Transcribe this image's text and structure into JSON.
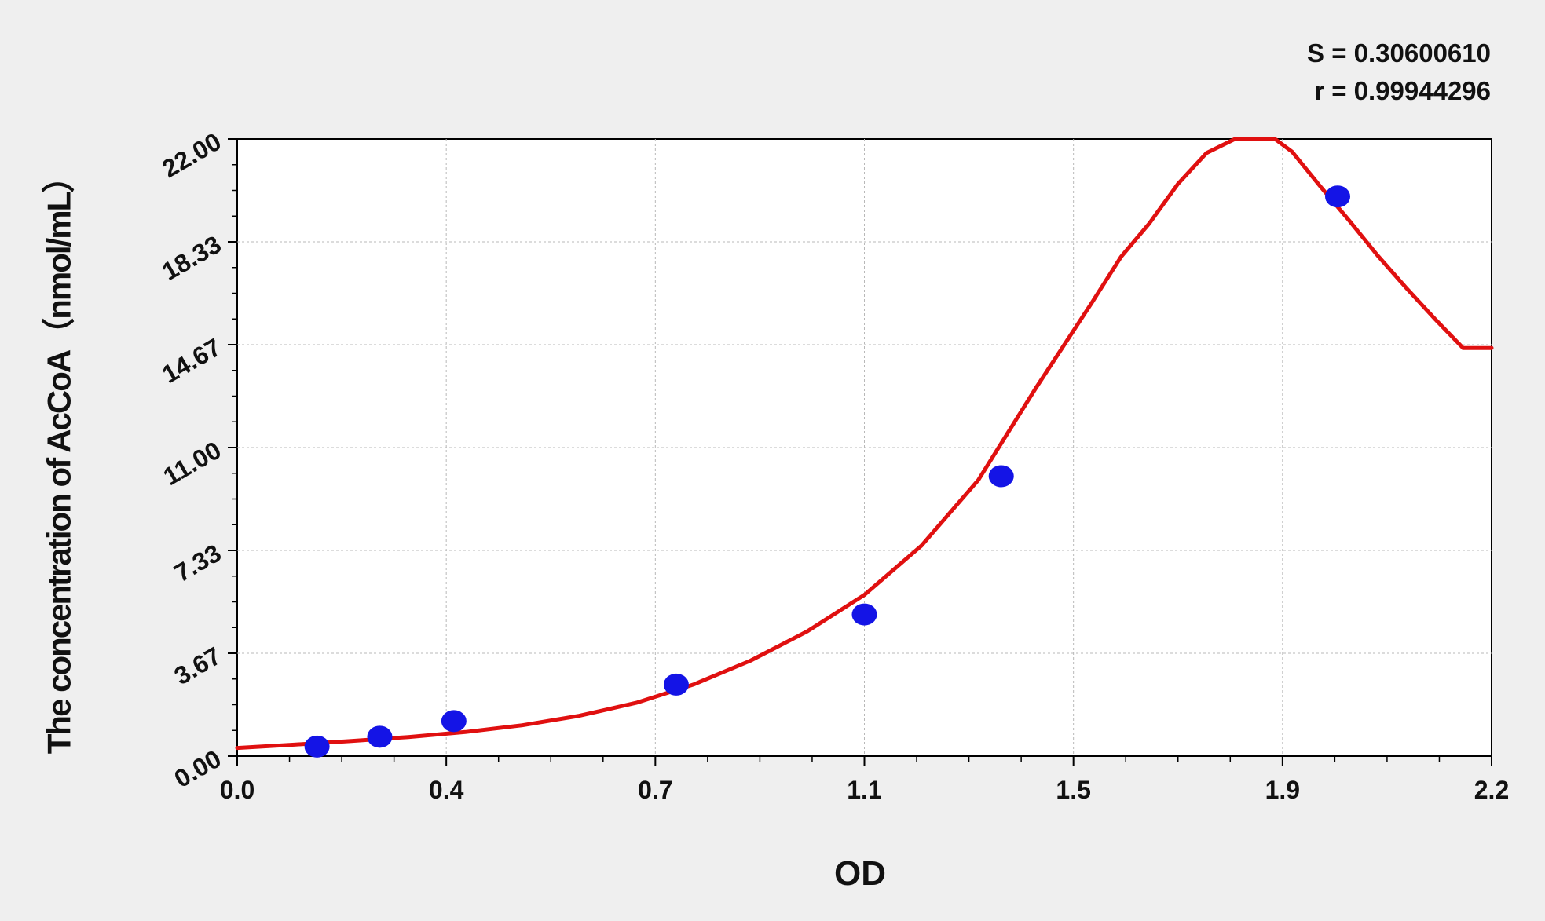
{
  "chart_data": {
    "type": "scatter",
    "xlabel": "OD",
    "ylabel": "The concentration of AcCoA（nmol/mL）",
    "x_ticks": [
      "0.0",
      "0.4",
      "0.7",
      "1.1",
      "1.5",
      "1.9",
      "2.2"
    ],
    "y_ticks": [
      "0.00",
      "3.67",
      "7.33",
      "11.00",
      "14.67",
      "18.33",
      "22.00"
    ],
    "xlim": [
      0.0,
      2.2
    ],
    "ylim": [
      0.0,
      22.0
    ],
    "grid": true,
    "stats": {
      "s": "S = 0.30600610",
      "r": "r = 0.99944296"
    },
    "points": [
      {
        "x": 0.14,
        "y": 0.34
      },
      {
        "x": 0.25,
        "y": 0.69
      },
      {
        "x": 0.38,
        "y": 1.25
      },
      {
        "x": 0.77,
        "y": 2.55
      },
      {
        "x": 1.1,
        "y": 5.05
      },
      {
        "x": 1.34,
        "y": 9.98
      },
      {
        "x": 1.93,
        "y": 19.95
      }
    ],
    "fit_curve": {
      "x": [
        0.0,
        0.1,
        0.2,
        0.3,
        0.4,
        0.5,
        0.6,
        0.7,
        0.8,
        0.9,
        1.0,
        1.1,
        1.2,
        1.3,
        1.4,
        1.5,
        1.55,
        1.6,
        1.65,
        1.7,
        1.75,
        1.755,
        1.81,
        1.82,
        1.85,
        1.9,
        1.95,
        2.0,
        2.05,
        2.1,
        2.15,
        2.2
      ],
      "y": [
        0.29,
        0.41,
        0.54,
        0.68,
        0.86,
        1.1,
        1.44,
        1.9,
        2.55,
        3.4,
        4.45,
        5.75,
        7.5,
        9.85,
        13.1,
        16.2,
        17.8,
        19.0,
        20.4,
        21.5,
        22.3,
        22.3,
        22.3,
        22.3,
        21.55,
        20.3,
        19.1,
        17.85,
        16.7,
        15.6,
        14.55,
        14.55
      ]
    },
    "colors": {
      "points": "#1414e6",
      "curve": "#e01010",
      "grid": "#b8b8b8",
      "axis": "#000000"
    }
  }
}
